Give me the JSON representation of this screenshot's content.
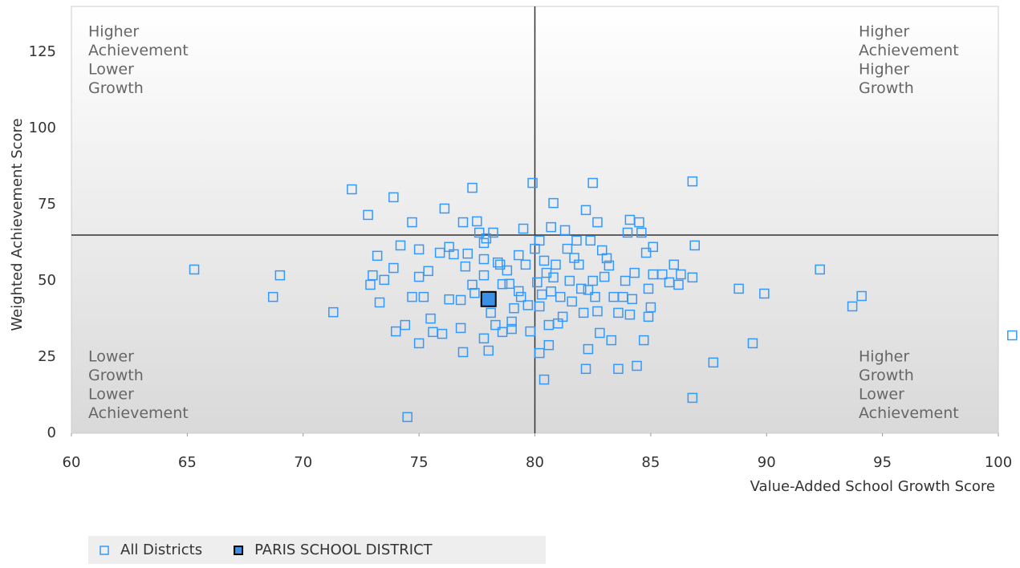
{
  "chart_data": {
    "type": "scatter",
    "x_label": "Value-Added School Growth Score",
    "y_label": "Weighted Achievement Score",
    "xlim": [
      60,
      100
    ],
    "xticks": [
      60,
      65,
      70,
      75,
      80,
      85,
      90,
      95,
      100
    ],
    "ylim": [
      0,
      140
    ],
    "yticks": [
      0,
      25,
      50,
      75,
      100,
      125
    ],
    "grid": false,
    "reference_x": 80,
    "reference_y": 65,
    "annotations": [
      {
        "position": "top-left",
        "lines": [
          "Higher",
          "Achievement",
          "Lower",
          "Growth"
        ]
      },
      {
        "position": "top-right",
        "lines": [
          "Higher",
          "Achievement",
          "Higher",
          "Growth"
        ]
      },
      {
        "position": "bottom-left",
        "lines": [
          "Lower",
          "Growth",
          "Lower",
          "Achievement"
        ]
      },
      {
        "position": "bottom-right",
        "lines": [
          "Higher",
          "Growth",
          "Lower",
          "Achievement"
        ]
      }
    ],
    "legend": "bottom-left",
    "series": [
      {
        "name": "All Districts",
        "color": "#3399ff",
        "filled": false,
        "x": [
          65.3,
          69.0,
          68.7,
          71.3,
          72.1,
          72.8,
          73.2,
          73.0,
          72.9,
          73.3,
          73.5,
          73.9,
          73.9,
          74.2,
          74.0,
          74.4,
          74.5,
          74.7,
          74.7,
          75.2,
          75.0,
          75.0,
          75.0,
          75.4,
          75.5,
          75.6,
          76.0,
          76.1,
          75.9,
          76.3,
          76.3,
          76.5,
          76.8,
          76.8,
          76.9,
          76.9,
          77.0,
          77.1,
          77.3,
          77.3,
          77.5,
          77.6,
          77.8,
          77.8,
          77.8,
          77.8,
          78.0,
          77.9,
          78.2,
          78.1,
          78.3,
          78.5,
          78.6,
          78.6,
          79.0,
          79.0,
          78.8,
          79.3,
          79.3,
          79.5,
          79.6,
          79.4,
          79.8,
          79.9,
          80.0,
          80.1,
          80.2,
          80.2,
          80.2,
          80.4,
          80.4,
          80.5,
          80.6,
          80.6,
          80.7,
          80.8,
          80.8,
          80.9,
          81.1,
          81.2,
          81.3,
          81.4,
          81.5,
          81.6,
          81.8,
          81.9,
          82.0,
          82.1,
          82.2,
          82.3,
          82.2,
          82.4,
          82.5,
          82.5,
          82.6,
          82.7,
          82.7,
          82.8,
          82.9,
          83.0,
          83.1,
          83.3,
          83.4,
          83.6,
          83.6,
          83.8,
          83.9,
          84.0,
          84.1,
          84.1,
          84.3,
          84.4,
          84.5,
          84.6,
          84.7,
          84.8,
          84.9,
          84.9,
          85.0,
          85.1,
          85.1,
          85.5,
          85.8,
          86.0,
          86.2,
          86.3,
          86.8,
          86.8,
          86.9,
          86.8,
          87.7,
          88.8,
          89.4,
          89.9,
          92.3,
          93.7,
          94.1,
          100.6,
          77.4,
          78.9,
          79.1,
          80.7,
          81.0,
          81.7,
          82.3,
          83.2,
          84.2,
          79.7,
          78.4,
          80.3
        ],
        "y": [
          53.7,
          51.8,
          44.7,
          39.7,
          80.0,
          71.6,
          58.2,
          51.8,
          48.7,
          42.9,
          50.3,
          77.4,
          54.2,
          61.6,
          33.4,
          35.5,
          5.3,
          69.2,
          44.7,
          44.7,
          60.3,
          51.3,
          29.5,
          53.2,
          37.6,
          33.2,
          32.6,
          73.7,
          59.2,
          61.1,
          43.9,
          58.7,
          43.7,
          34.5,
          26.6,
          69.2,
          54.7,
          58.9,
          48.7,
          80.5,
          69.5,
          65.8,
          62.4,
          57.1,
          51.8,
          31.1,
          27.1,
          63.9,
          65.8,
          39.5,
          35.5,
          55.3,
          48.9,
          33.2,
          36.6,
          34.2,
          53.4,
          58.4,
          46.6,
          67.1,
          55.3,
          44.7,
          33.4,
          82.1,
          60.5,
          49.5,
          63.2,
          41.6,
          26.3,
          17.6,
          56.6,
          52.6,
          35.5,
          28.9,
          67.6,
          75.5,
          51.1,
          55.3,
          44.7,
          38.2,
          66.6,
          60.5,
          50.0,
          43.2,
          63.2,
          55.3,
          47.4,
          39.5,
          73.2,
          27.6,
          21.1,
          63.2,
          82.1,
          50.0,
          44.7,
          69.2,
          40.0,
          32.9,
          60.0,
          51.3,
          57.4,
          30.5,
          44.7,
          39.5,
          21.1,
          44.7,
          50.0,
          65.8,
          70.0,
          38.9,
          52.6,
          22.1,
          69.2,
          65.8,
          30.5,
          59.2,
          47.4,
          38.2,
          41.3,
          61.1,
          52.1,
          52.1,
          49.5,
          55.3,
          48.7,
          52.1,
          82.6,
          51.1,
          61.6,
          11.6,
          23.2,
          47.4,
          29.5,
          45.8,
          53.7,
          41.6,
          45.0,
          32.1,
          46.0,
          49.0,
          41.0,
          46.5,
          36.0,
          57.5,
          47.0,
          55.0,
          44.0,
          42.0,
          56.0,
          45.5
        ]
      },
      {
        "name": "PARIS SCHOOL DISTRICT",
        "color": "#3a8fe6",
        "filled": true,
        "x": [
          78.0
        ],
        "y": [
          44.0
        ]
      }
    ]
  }
}
